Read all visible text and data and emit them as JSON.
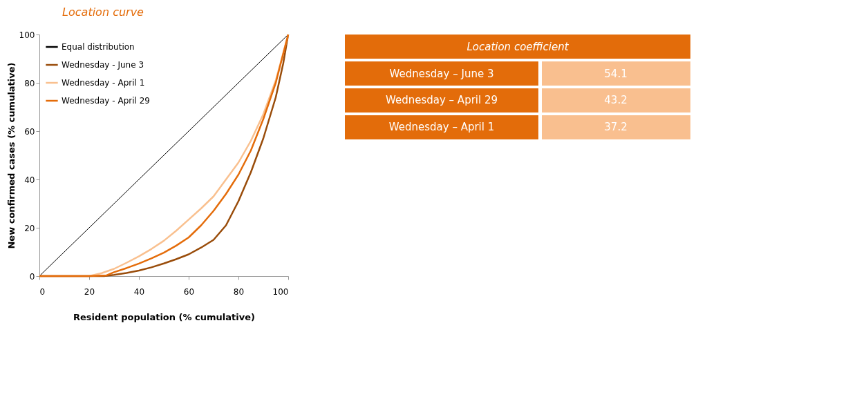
{
  "chart_data": [
    {
      "type": "line",
      "title": "Location curve",
      "xlabel": "Resident population (% cumulative)",
      "ylabel": "New confirmed cases (% cumulative)",
      "xlim": [
        0,
        100
      ],
      "ylim": [
        0,
        100
      ],
      "xticks": [
        0,
        20,
        40,
        60,
        80,
        100
      ],
      "yticks": [
        0,
        20,
        40,
        60,
        80,
        100
      ],
      "grid": false,
      "legend": "top left",
      "line_style": "solid",
      "marker": "none",
      "series": [
        {
          "name": "Equal distribution",
          "color": "#000000",
          "x": [
            0,
            100
          ],
          "values": [
            0,
            100
          ]
        },
        {
          "name": "Wednesday - June 3",
          "color": "#994c0a",
          "x": [
            0,
            10,
            20,
            26,
            30,
            35,
            40,
            45,
            50,
            55,
            60,
            65,
            70,
            75,
            80,
            85,
            90,
            95,
            98,
            100
          ],
          "values": [
            0,
            0,
            0,
            0,
            0.5,
            1.3,
            2.3,
            3.6,
            5.2,
            7,
            9,
            11.8,
            15,
            21,
            31,
            43,
            57,
            74,
            88,
            100
          ]
        },
        {
          "name": "Wednesday - April 1",
          "color": "#f9c08f",
          "x": [
            0,
            10,
            20,
            25,
            30,
            35,
            40,
            45,
            50,
            55,
            60,
            65,
            70,
            75,
            80,
            85,
            90,
            95,
            100
          ],
          "values": [
            0,
            0,
            0,
            1.2,
            3,
            5.5,
            8.2,
            11.2,
            14.6,
            18.8,
            23.4,
            28,
            33,
            40,
            47,
            56,
            67,
            81,
            100
          ]
        },
        {
          "name": "Wednesday - April 29",
          "color": "#e46c0a",
          "x": [
            0,
            10,
            20,
            27,
            30,
            35,
            40,
            45,
            50,
            55,
            60,
            65,
            70,
            75,
            80,
            85,
            90,
            95,
            100
          ],
          "values": [
            0,
            0,
            0,
            0.3,
            1.6,
            3.3,
            5.2,
            7.3,
            9.7,
            12.6,
            16,
            21,
            27,
            34,
            42,
            52,
            65,
            80,
            100
          ]
        }
      ]
    },
    {
      "type": "other",
      "title": "Location coefficient",
      "color": "#e36c0a",
      "categories": [
        "Wednesday – June 3",
        "Wednesday – April 29",
        "Wednesday – April 1"
      ],
      "series": [
        {
          "color": "#f9bf8f",
          "values": [
            54.1,
            43.2,
            37.2
          ]
        }
      ],
      "data_labels": true
    }
  ]
}
